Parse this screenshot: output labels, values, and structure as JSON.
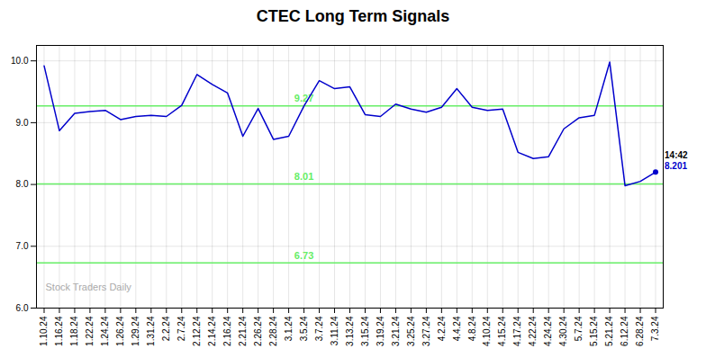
{
  "chart_data": {
    "type": "line",
    "title": "CTEC Long Term Signals",
    "categories": [
      "1.10.24",
      "1.16.24",
      "1.18.24",
      "1.22.24",
      "1.24.24",
      "1.26.24",
      "1.29.24",
      "1.31.24",
      "2.2.24",
      "2.7.24",
      "2.12.24",
      "2.14.24",
      "2.16.24",
      "2.21.24",
      "2.26.24",
      "2.28.24",
      "3.1.24",
      "3.5.24",
      "3.7.24",
      "3.11.24",
      "3.13.24",
      "3.15.24",
      "3.19.24",
      "3.21.24",
      "3.25.24",
      "3.27.24",
      "4.2.24",
      "4.4.24",
      "4.8.24",
      "4.10.24",
      "4.15.24",
      "4.17.24",
      "4.22.24",
      "4.24.24",
      "4.30.24",
      "5.7.24",
      "5.15.24",
      "5.21.24",
      "6.12.24",
      "6.28.24",
      "7.3.24"
    ],
    "values": [
      9.92,
      8.87,
      9.15,
      9.18,
      9.2,
      9.05,
      9.1,
      9.12,
      9.1,
      9.28,
      9.78,
      9.62,
      9.48,
      8.78,
      9.23,
      8.73,
      8.78,
      9.27,
      9.68,
      9.55,
      9.58,
      9.13,
      9.1,
      9.3,
      9.22,
      9.17,
      9.25,
      9.55,
      9.25,
      9.2,
      9.22,
      8.52,
      8.42,
      8.45,
      8.9,
      9.08,
      9.12,
      9.98,
      7.98,
      8.05,
      8.201
    ],
    "color": "#0000cc",
    "ylim": [
      6.0,
      10.25
    ],
    "yticks": [
      6,
      7,
      8,
      9,
      10
    ],
    "grid": true,
    "hlines": [
      {
        "value": 9.27,
        "label": "9.27",
        "color": "#66ee66"
      },
      {
        "value": 8.01,
        "label": "8.01",
        "color": "#66ee66"
      },
      {
        "value": 6.73,
        "label": "6.73",
        "color": "#66ee66"
      }
    ],
    "annotations": [
      {
        "text": "Stock Traders Daily",
        "color": "#aaaaaa"
      },
      {
        "text": "14:42",
        "color": "#000000"
      },
      {
        "text": "8.201",
        "color": "#0000cc"
      }
    ]
  }
}
